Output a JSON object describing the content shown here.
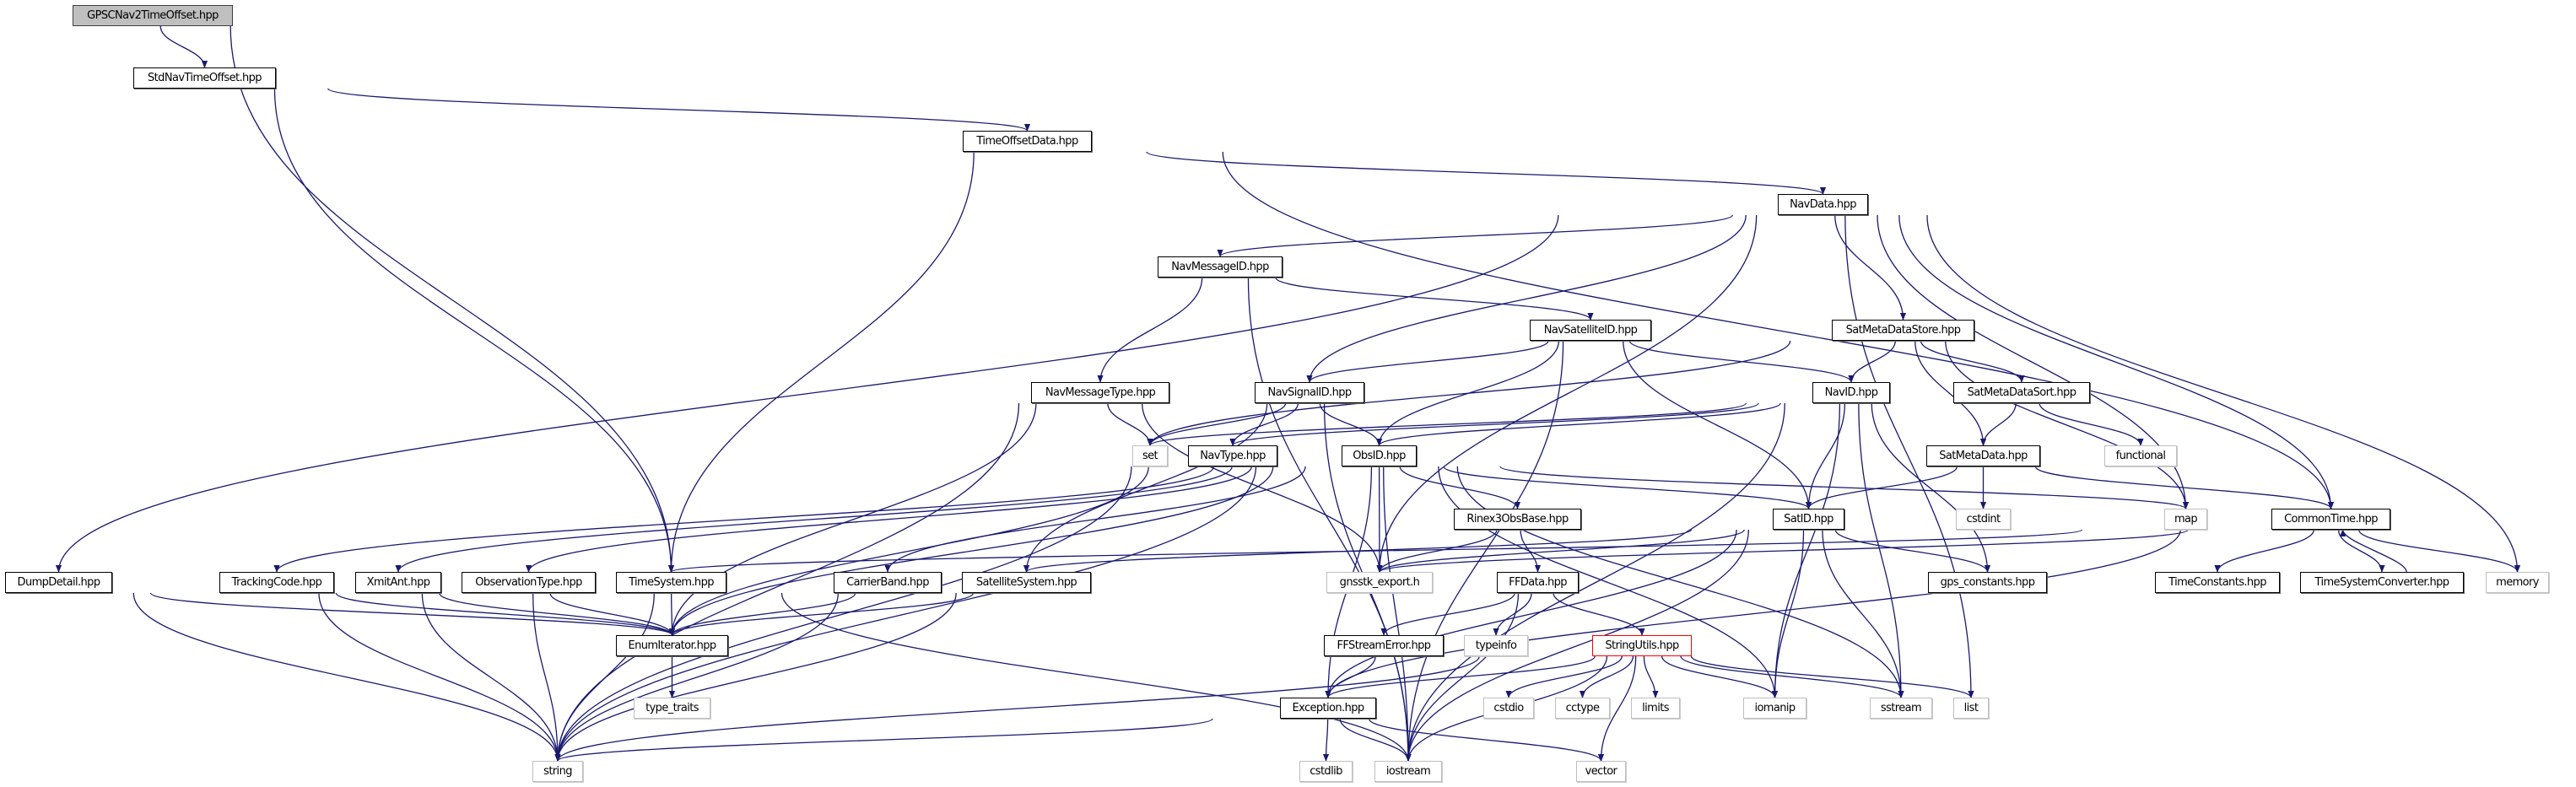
{
  "graph": {
    "edge_color": "#191970",
    "nodes": {
      "GPSCNav2TimeOffset": {
        "label": "GPSCNav2TimeOffset.hpp",
        "kind": "root"
      },
      "StdNavTimeOffset": {
        "label": "StdNavTimeOffset.hpp",
        "kind": "local"
      },
      "TimeOffsetData": {
        "label": "TimeOffsetData.hpp",
        "kind": "local"
      },
      "NavData": {
        "label": "NavData.hpp",
        "kind": "local"
      },
      "NavMessageID": {
        "label": "NavMessageID.hpp",
        "kind": "local"
      },
      "NavSatelliteID": {
        "label": "NavSatelliteID.hpp",
        "kind": "local"
      },
      "SatMetaDataStore": {
        "label": "SatMetaDataStore.hpp",
        "kind": "local"
      },
      "NavMessageType": {
        "label": "NavMessageType.hpp",
        "kind": "local"
      },
      "NavSignalID": {
        "label": "NavSignalID.hpp",
        "kind": "local"
      },
      "NavID": {
        "label": "NavID.hpp",
        "kind": "local"
      },
      "SatMetaDataSort": {
        "label": "SatMetaDataSort.hpp",
        "kind": "local"
      },
      "set": {
        "label": "set",
        "kind": "system"
      },
      "NavType": {
        "label": "NavType.hpp",
        "kind": "local"
      },
      "ObsID": {
        "label": "ObsID.hpp",
        "kind": "local"
      },
      "SatMetaData": {
        "label": "SatMetaData.hpp",
        "kind": "local"
      },
      "functional": {
        "label": "functional",
        "kind": "system"
      },
      "Rinex3ObsBase": {
        "label": "Rinex3ObsBase.hpp",
        "kind": "local"
      },
      "SatID": {
        "label": "SatID.hpp",
        "kind": "local"
      },
      "cstdint": {
        "label": "cstdint",
        "kind": "system"
      },
      "map": {
        "label": "map",
        "kind": "system"
      },
      "CommonTime": {
        "label": "CommonTime.hpp",
        "kind": "local"
      },
      "DumpDetail": {
        "label": "DumpDetail.hpp",
        "kind": "local"
      },
      "TrackingCode": {
        "label": "TrackingCode.hpp",
        "kind": "local"
      },
      "XmitAnt": {
        "label": "XmitAnt.hpp",
        "kind": "local"
      },
      "ObservationType": {
        "label": "ObservationType.hpp",
        "kind": "local"
      },
      "TimeSystem": {
        "label": "TimeSystem.hpp",
        "kind": "local"
      },
      "CarrierBand": {
        "label": "CarrierBand.hpp",
        "kind": "local"
      },
      "SatelliteSystem": {
        "label": "SatelliteSystem.hpp",
        "kind": "local"
      },
      "gnsstk_export": {
        "label": "gnsstk_export.h",
        "kind": "system"
      },
      "FFData": {
        "label": "FFData.hpp",
        "kind": "local"
      },
      "gps_constants": {
        "label": "gps_constants.hpp",
        "kind": "local"
      },
      "TimeConstants": {
        "label": "TimeConstants.hpp",
        "kind": "local"
      },
      "TimeSystemConverter": {
        "label": "TimeSystemConverter.hpp",
        "kind": "local"
      },
      "memory": {
        "label": "memory",
        "kind": "system"
      },
      "EnumIterator": {
        "label": "EnumIterator.hpp",
        "kind": "local"
      },
      "FFStreamError": {
        "label": "FFStreamError.hpp",
        "kind": "local"
      },
      "typeinfo": {
        "label": "typeinfo",
        "kind": "system"
      },
      "StringUtils": {
        "label": "StringUtils.hpp",
        "kind": "highlight"
      },
      "type_traits": {
        "label": "type_traits",
        "kind": "system"
      },
      "Exception": {
        "label": "Exception.hpp",
        "kind": "local"
      },
      "cstdio": {
        "label": "cstdio",
        "kind": "system"
      },
      "cctype": {
        "label": "cctype",
        "kind": "system"
      },
      "limits": {
        "label": "limits",
        "kind": "system"
      },
      "iomanip": {
        "label": "iomanip",
        "kind": "system"
      },
      "sstream": {
        "label": "sstream",
        "kind": "system"
      },
      "list": {
        "label": "list",
        "kind": "system"
      },
      "string": {
        "label": "string",
        "kind": "system"
      },
      "cstdlib": {
        "label": "cstdlib",
        "kind": "system"
      },
      "iostream": {
        "label": "iostream",
        "kind": "system"
      },
      "vector": {
        "label": "vector",
        "kind": "system"
      }
    },
    "edges": [
      [
        "GPSCNav2TimeOffset",
        "StdNavTimeOffset"
      ],
      [
        "GPSCNav2TimeOffset",
        "TimeSystem"
      ],
      [
        "StdNavTimeOffset",
        "TimeOffsetData"
      ],
      [
        "StdNavTimeOffset",
        "TimeSystem"
      ],
      [
        "TimeOffsetData",
        "NavData"
      ],
      [
        "TimeOffsetData",
        "TimeSystem"
      ],
      [
        "TimeOffsetData",
        "CommonTime"
      ],
      [
        "NavData",
        "NavMessageID"
      ],
      [
        "NavData",
        "DumpDetail"
      ],
      [
        "NavData",
        "NavSignalID"
      ],
      [
        "NavData",
        "SatMetaDataStore"
      ],
      [
        "NavData",
        "gnsstk_export"
      ],
      [
        "NavData",
        "CommonTime"
      ],
      [
        "NavData",
        "map"
      ],
      [
        "NavData",
        "list"
      ],
      [
        "NavData",
        "memory"
      ],
      [
        "NavMessageID",
        "NavMessageType"
      ],
      [
        "NavMessageID",
        "NavSatelliteID"
      ],
      [
        "NavMessageID",
        "iostream"
      ],
      [
        "NavSatelliteID",
        "NavSignalID"
      ],
      [
        "NavSatelliteID",
        "ObsID"
      ],
      [
        "NavSatelliteID",
        "NavID"
      ],
      [
        "NavSatelliteID",
        "SatID"
      ],
      [
        "NavSatelliteID",
        "iostream"
      ],
      [
        "SatMetaDataStore",
        "NavID"
      ],
      [
        "SatMetaDataStore",
        "SatMetaDataSort"
      ],
      [
        "SatMetaDataStore",
        "SatMetaData"
      ],
      [
        "SatMetaDataStore",
        "map"
      ],
      [
        "SatMetaDataStore",
        "set"
      ],
      [
        "NavMessageType",
        "set"
      ],
      [
        "NavMessageType",
        "string"
      ],
      [
        "NavMessageType",
        "EnumIterator"
      ],
      [
        "NavMessageType",
        "gnsstk_export"
      ],
      [
        "NavSignalID",
        "set"
      ],
      [
        "NavSignalID",
        "NavType"
      ],
      [
        "NavSignalID",
        "ObsID"
      ],
      [
        "NavSignalID",
        "SatelliteSystem"
      ],
      [
        "NavSignalID",
        "iostream"
      ],
      [
        "NavID",
        "NavType"
      ],
      [
        "NavID",
        "ObsID"
      ],
      [
        "NavID",
        "SatID"
      ],
      [
        "NavID",
        "iomanip"
      ],
      [
        "NavID",
        "gps_constants"
      ],
      [
        "NavID",
        "sstream"
      ],
      [
        "NavID",
        "iostream"
      ],
      [
        "NavID",
        "set"
      ],
      [
        "SatMetaDataSort",
        "SatMetaData"
      ],
      [
        "SatMetaDataSort",
        "functional"
      ],
      [
        "SatMetaData",
        "SatID"
      ],
      [
        "SatMetaData",
        "cstdint"
      ],
      [
        "SatMetaData",
        "CommonTime"
      ],
      [
        "NavType",
        "EnumIterator"
      ],
      [
        "NavType",
        "string"
      ],
      [
        "ObsID",
        "CarrierBand"
      ],
      [
        "ObsID",
        "TrackingCode"
      ],
      [
        "ObsID",
        "XmitAnt"
      ],
      [
        "ObsID",
        "ObservationType"
      ],
      [
        "ObsID",
        "SatID"
      ],
      [
        "ObsID",
        "Rinex3ObsBase"
      ],
      [
        "ObsID",
        "gnsstk_export"
      ],
      [
        "ObsID",
        "Exception"
      ],
      [
        "ObsID",
        "iostream"
      ],
      [
        "ObsID",
        "iomanip"
      ],
      [
        "ObsID",
        "sstream"
      ],
      [
        "ObsID",
        "map"
      ],
      [
        "ObsID",
        "string"
      ],
      [
        "ObsID",
        "EnumIterator"
      ],
      [
        "Rinex3ObsBase",
        "gnsstk_export"
      ],
      [
        "Rinex3ObsBase",
        "FFData"
      ],
      [
        "SatID",
        "SatelliteSystem"
      ],
      [
        "SatID",
        "gnsstk_export"
      ],
      [
        "SatID",
        "gps_constants"
      ],
      [
        "SatID",
        "iomanip"
      ],
      [
        "SatID",
        "sstream"
      ],
      [
        "SatID",
        "iostream"
      ],
      [
        "SatID",
        "Exception"
      ],
      [
        "CommonTime",
        "TimeSystem"
      ],
      [
        "CommonTime",
        "gnsstk_export"
      ],
      [
        "CommonTime",
        "Exception"
      ],
      [
        "CommonTime",
        "TimeConstants"
      ],
      [
        "CommonTime",
        "TimeSystemConverter"
      ],
      [
        "CommonTime",
        "memory"
      ],
      [
        "TimeSystemConverter",
        "CommonTime"
      ],
      [
        "FFData",
        "FFStreamError"
      ],
      [
        "FFData",
        "typeinfo"
      ],
      [
        "FFData",
        "StringUtils"
      ],
      [
        "FFData",
        "iostream"
      ],
      [
        "FFStreamError",
        "Exception"
      ],
      [
        "StringUtils",
        "Exception"
      ],
      [
        "StringUtils",
        "cstdio"
      ],
      [
        "StringUtils",
        "cctype"
      ],
      [
        "StringUtils",
        "limits"
      ],
      [
        "StringUtils",
        "iomanip"
      ],
      [
        "StringUtils",
        "sstream"
      ],
      [
        "StringUtils",
        "list"
      ],
      [
        "StringUtils",
        "vector"
      ],
      [
        "StringUtils",
        "iostream"
      ],
      [
        "StringUtils",
        "string"
      ],
      [
        "Exception",
        "cstdlib"
      ],
      [
        "Exception",
        "iostream"
      ],
      [
        "Exception",
        "vector"
      ],
      [
        "Exception",
        "string"
      ],
      [
        "SatelliteSystem",
        "EnumIterator"
      ],
      [
        "SatelliteSystem",
        "string"
      ],
      [
        "CarrierBand",
        "EnumIterator"
      ],
      [
        "CarrierBand",
        "string"
      ],
      [
        "TrackingCode",
        "EnumIterator"
      ],
      [
        "TrackingCode",
        "string"
      ],
      [
        "XmitAnt",
        "EnumIterator"
      ],
      [
        "XmitAnt",
        "string"
      ],
      [
        "ObservationType",
        "EnumIterator"
      ],
      [
        "ObservationType",
        "string"
      ],
      [
        "TimeSystem",
        "EnumIterator"
      ],
      [
        "TimeSystem",
        "string"
      ],
      [
        "TimeSystem",
        "iostream"
      ],
      [
        "DumpDetail",
        "EnumIterator"
      ],
      [
        "DumpDetail",
        "string"
      ],
      [
        "EnumIterator",
        "type_traits"
      ]
    ]
  }
}
